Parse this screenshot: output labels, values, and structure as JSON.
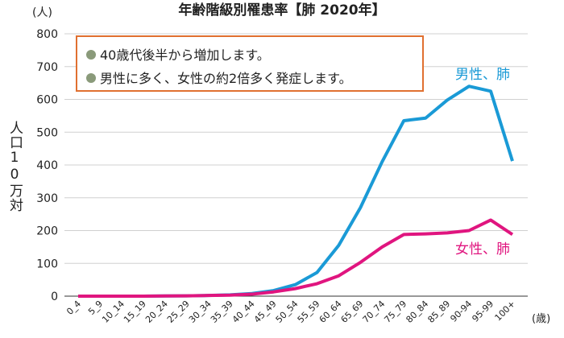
{
  "chart_data": {
    "type": "line",
    "title": "年齢階級別罹患率【肺 2020年】",
    "y_unit": "(人)",
    "x_unit": "(歳)",
    "y_label": "人口10万対",
    "notes": [
      "40歳代後半から増加します。",
      "男性に多く、女性の約2倍多く発症します。"
    ],
    "categories": [
      "0_4",
      "5_9",
      "10_14",
      "15_19",
      "20_24",
      "25_29",
      "30_34",
      "35_39",
      "40_44",
      "45_49",
      "50_54",
      "55_59",
      "60_64",
      "65_69",
      "70_74",
      "75_79",
      "80_84",
      "85_89",
      "90-94",
      "95-99",
      "100+"
    ],
    "series": [
      {
        "name": "男性、肺",
        "color": "#1a9ad6",
        "values": [
          0,
          0,
          0,
          0,
          0.5,
          1,
          2,
          4,
          8,
          17,
          35,
          72,
          155,
          270,
          410,
          535,
          543,
          598,
          640,
          625,
          412
        ]
      },
      {
        "name": "女性、肺",
        "color": "#e0157f",
        "values": [
          0,
          0,
          0,
          0,
          0.5,
          1,
          2,
          3,
          6,
          13,
          23,
          38,
          62,
          103,
          150,
          188,
          190,
          193,
          200,
          232,
          188
        ]
      }
    ],
    "ylim": [
      0,
      800
    ],
    "yticks": [
      0,
      100,
      200,
      300,
      400,
      500,
      600,
      700,
      800
    ],
    "grid": true
  }
}
